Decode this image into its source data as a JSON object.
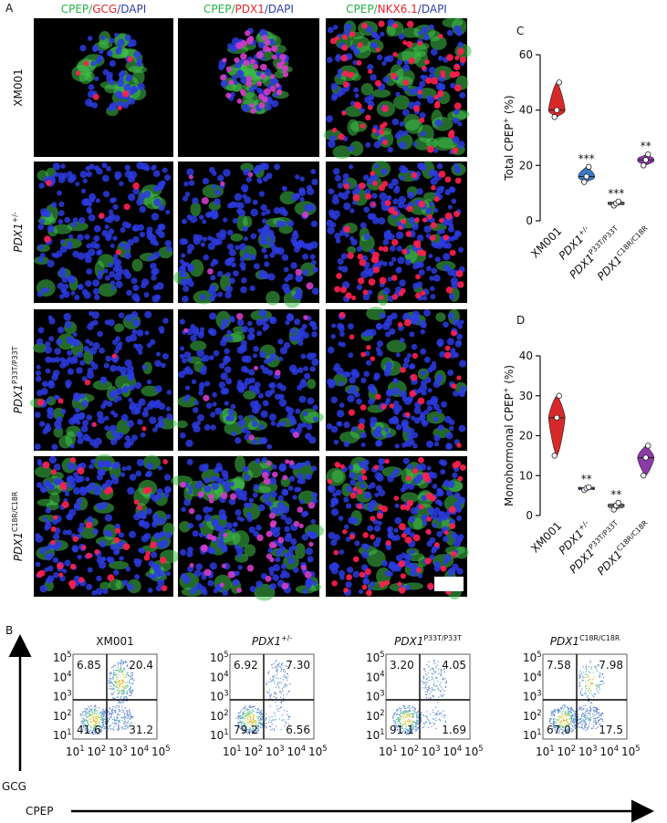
{
  "panel_labels": [
    "A",
    "B",
    "C",
    "D"
  ],
  "column_headers": [
    [
      {
        "text": "CPEP/",
        "color": "#23b04a"
      },
      {
        "text": "GCG",
        "color": "#e8232a"
      },
      {
        "text": "/DAPI",
        "color": "#2e3fa8"
      }
    ],
    [
      {
        "text": "CPEP/",
        "color": "#23b04a"
      },
      {
        "text": "PDX1",
        "color": "#e8232a"
      },
      {
        "text": "/DAPI",
        "color": "#2e3fa8"
      }
    ],
    [
      {
        "text": "CPEP/",
        "color": "#23b04a"
      },
      {
        "text": "NKX6.1",
        "color": "#e8232a"
      },
      {
        "text": "/DAPI",
        "color": "#2e3fa8"
      }
    ]
  ],
  "row_labels": [
    {
      "base": "XM001"
    },
    {
      "base": "PDX1",
      "sup": "+/-"
    },
    {
      "base": "PDX1",
      "sup": "P33T/P33T"
    },
    {
      "base": "PDX1",
      "sup": "C18R/C18R"
    }
  ],
  "chart_data": [
    {
      "type": "violin",
      "ylabel": {
        "base": "Total CPEP",
        "sup": "+",
        "tail": " (%)"
      },
      "ylim": [
        0,
        60
      ],
      "yticks": [
        0,
        20,
        40,
        60
      ],
      "categories": [
        {
          "base": "XM001"
        },
        {
          "base": "PDX1",
          "sup": "+/-"
        },
        {
          "base": "PDX1",
          "sup": "P33T/P33T"
        },
        {
          "base": "PDX1",
          "sup": "C18R/C18R"
        }
      ],
      "colors": [
        "#d7282a",
        "#3b79c3",
        "#8a8a8a",
        "#8b3aa6"
      ],
      "values": [
        [
          37.5,
          40,
          50
        ],
        [
          14,
          16,
          19.5
        ],
        [
          5.5,
          6.3,
          7
        ],
        [
          20,
          22,
          24
        ]
      ],
      "annotations": [
        null,
        "***",
        "***",
        "**"
      ]
    },
    {
      "type": "violin",
      "ylabel": {
        "base": "Monohormonal CPEP",
        "sup": "+",
        "tail": " (%)"
      },
      "ylim": [
        0,
        40
      ],
      "yticks": [
        0,
        10,
        20,
        30,
        40
      ],
      "categories": [
        {
          "base": "XM001"
        },
        {
          "base": "PDX1",
          "sup": "+/-"
        },
        {
          "base": "PDX1",
          "sup": "P33T/P33T"
        },
        {
          "base": "PDX1",
          "sup": "C18R/C18R"
        }
      ],
      "colors": [
        "#d7282a",
        "#3b79c3",
        "#8a8a8a",
        "#8b3aa6"
      ],
      "values": [
        [
          15,
          24.5,
          30
        ],
        [
          6.4,
          6.8,
          7.1
        ],
        [
          1.5,
          2.5,
          3.2
        ],
        [
          10,
          14.5,
          17.5
        ]
      ],
      "annotations": [
        null,
        "**",
        "**",
        null
      ]
    }
  ],
  "flow": {
    "y_label": "GCG",
    "x_label": "CPEP",
    "tick": {
      "base": "10",
      "exponents": [
        "1",
        "2",
        "3",
        "4",
        "5"
      ]
    },
    "plots": [
      {
        "title": {
          "base": "XM001"
        },
        "quadrants": {
          "ul": "6.85",
          "ur": "20.4",
          "ll": "41.6",
          "lr": "31.2"
        }
      },
      {
        "title": {
          "base": "PDX1",
          "sup": "+/-"
        },
        "quadrants": {
          "ul": "6.92",
          "ur": "7.30",
          "ll": "79.2",
          "lr": "6.56"
        }
      },
      {
        "title": {
          "base": "PDX1",
          "sup": "P33T/P33T"
        },
        "quadrants": {
          "ul": "3.20",
          "ur": "4.05",
          "ll": "91.1",
          "lr": "1.69"
        }
      },
      {
        "title": {
          "base": "PDX1",
          "sup": "C18R/C18R"
        },
        "quadrants": {
          "ul": "7.58",
          "ur": "7.98",
          "ll": "67.0",
          "lr": "17.5"
        }
      }
    ]
  }
}
